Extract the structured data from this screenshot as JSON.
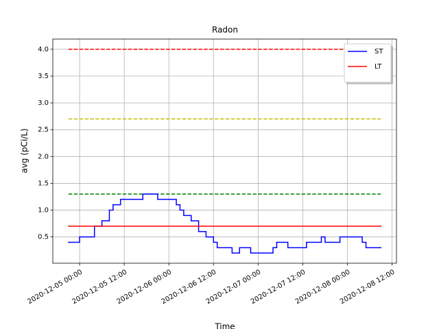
{
  "chart_data": {
    "type": "step-line",
    "title": "Radon",
    "x_label": "Time",
    "y_label": "avg (pCi/L)",
    "xlim": [
      "2020-12-04 16:48",
      "2020-12-08 13:12"
    ],
    "xticks": [
      "2020-12-05 00:00",
      "2020-12-05 12:00",
      "2020-12-06 00:00",
      "2020-12-06 12:00",
      "2020-12-07 00:00",
      "2020-12-07 12:00",
      "2020-12-08 00:00",
      "2020-12-08 12:00"
    ],
    "ylim": [
      0.01,
      4.19
    ],
    "yticks": [
      0.5,
      {
        "value": 1,
        "label": "1.0"
      },
      1.5,
      {
        "value": 2,
        "label": "2.0"
      },
      2.5,
      {
        "value": 3,
        "label": "3.0"
      },
      3.5,
      {
        "value": 4,
        "label": "4.0"
      }
    ],
    "grid": true,
    "legend_position": "upper right",
    "reference_lines": [
      {
        "value": 4.0,
        "color": "#ff0000",
        "style": "dashed",
        "x": [
          "2020-12-04 21:00",
          "2020-12-08 09:00"
        ]
      },
      {
        "value": 2.7,
        "color": "#bfbf00",
        "style": "dashed",
        "x": [
          "2020-12-04 21:00",
          "2020-12-08 09:00"
        ]
      },
      {
        "value": 1.3,
        "color": "#008000",
        "style": "dashed",
        "x": [
          "2020-12-04 21:00",
          "2020-12-08 09:00"
        ]
      }
    ],
    "series": [
      {
        "name": "ST",
        "color": "#0000ff",
        "x": [
          "2020-12-04 21:00",
          "2020-12-05 00:00",
          "2020-12-05 04:00",
          "2020-12-05 06:00",
          "2020-12-05 08:00",
          "2020-12-05 09:00",
          "2020-12-05 11:00",
          "2020-12-05 17:00",
          "2020-12-05 21:00",
          "2020-12-06 02:00",
          "2020-12-06 03:00",
          "2020-12-06 04:00",
          "2020-12-06 06:00",
          "2020-12-06 08:00",
          "2020-12-06 10:00",
          "2020-12-06 12:00",
          "2020-12-06 13:00",
          "2020-12-06 17:00",
          "2020-12-06 19:00",
          "2020-12-06 22:00",
          "2020-12-07 04:00",
          "2020-12-07 05:00",
          "2020-12-07 08:00",
          "2020-12-07 13:00",
          "2020-12-07 17:00",
          "2020-12-07 18:00",
          "2020-12-07 22:00",
          "2020-12-08 04:00",
          "2020-12-08 05:00",
          "2020-12-08 09:00"
        ],
        "values": [
          0.4,
          0.5,
          0.7,
          0.8,
          1.0,
          1.1,
          1.2,
          1.3,
          1.2,
          1.1,
          1.0,
          0.9,
          0.8,
          0.6,
          0.5,
          0.4,
          0.3,
          0.2,
          0.3,
          0.2,
          0.3,
          0.4,
          0.3,
          0.4,
          0.5,
          0.4,
          0.5,
          0.4,
          0.3,
          0.3
        ]
      },
      {
        "name": "LT",
        "color": "#ff0000",
        "x": [
          "2020-12-04 21:00",
          "2020-12-08 09:00"
        ],
        "values": [
          0.7,
          0.7
        ]
      }
    ]
  }
}
